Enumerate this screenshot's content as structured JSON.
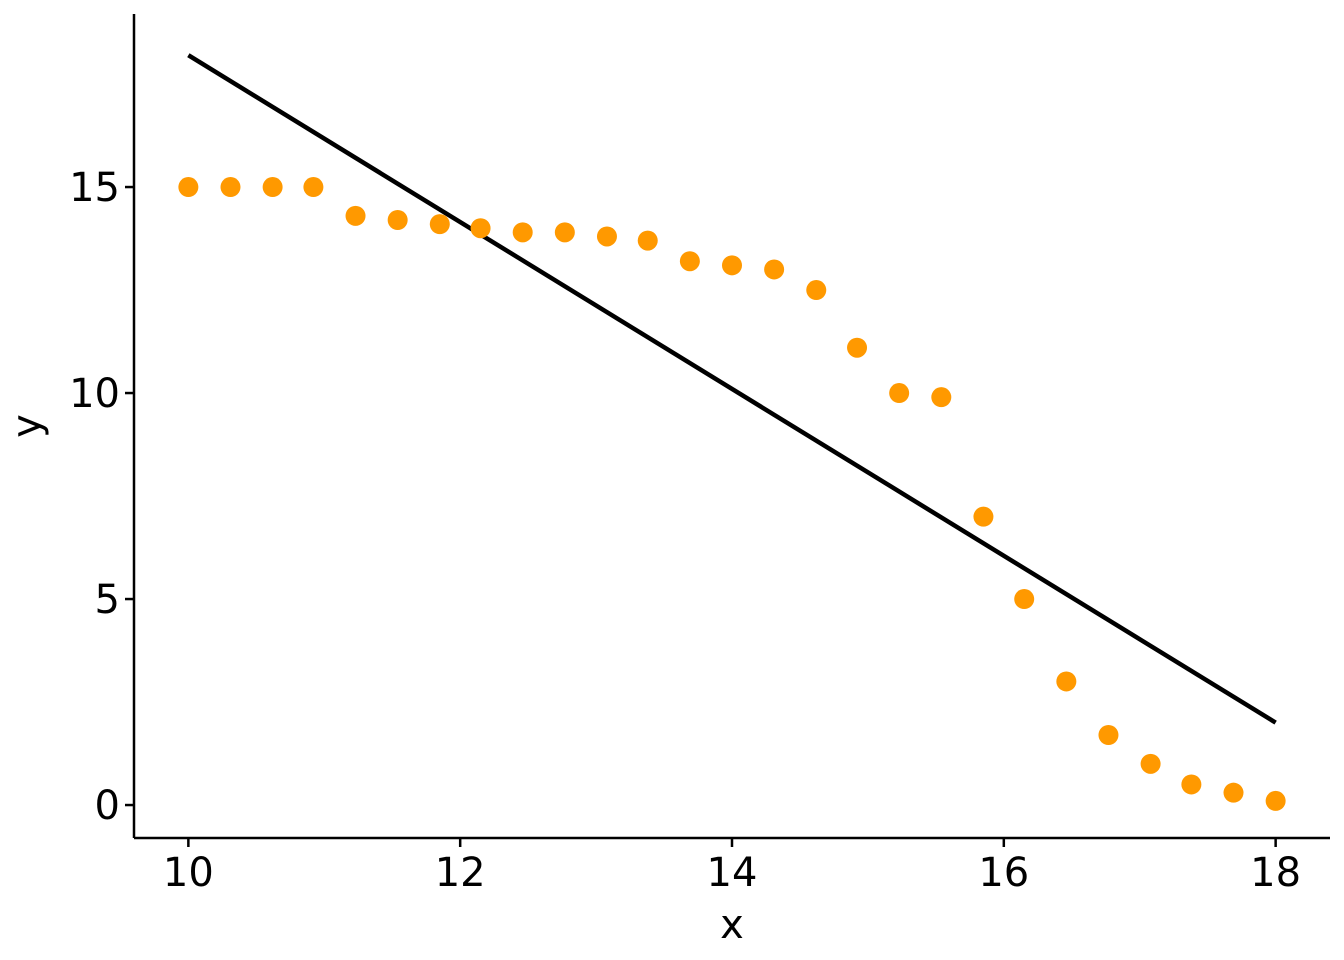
{
  "chart_data": {
    "type": "scatter",
    "xlabel": "x",
    "ylabel": "y",
    "xlim": [
      9.6,
      18.4
    ],
    "ylim": [
      -0.8,
      19.2
    ],
    "x_ticks": [
      10,
      12,
      14,
      16,
      18
    ],
    "x_tick_labels": [
      "10",
      "12",
      "14",
      "16",
      "18"
    ],
    "y_ticks": [
      0,
      5,
      10,
      15
    ],
    "y_tick_labels": [
      "0",
      "5",
      "10",
      "15"
    ],
    "grid": false,
    "series": [
      {
        "kind": "scatter",
        "color": "#ff9900",
        "x": [
          10,
          10.31,
          10.62,
          10.92,
          11.23,
          11.54,
          11.85,
          12.15,
          12.46,
          12.77,
          13.08,
          13.38,
          13.69,
          14.0,
          14.31,
          14.62,
          14.92,
          15.23,
          15.54,
          15.85,
          16.15,
          16.46,
          16.77,
          17.08,
          17.38,
          17.69,
          18.0
        ],
        "y": [
          15.0,
          15.0,
          15.0,
          15.0,
          14.3,
          14.2,
          14.1,
          14.0,
          13.9,
          13.9,
          13.8,
          13.7,
          13.2,
          13.1,
          13.0,
          12.5,
          11.1,
          10.0,
          9.9,
          7.0,
          5.0,
          3.0,
          1.7,
          1.0,
          0.5,
          0.3,
          0.1
        ]
      },
      {
        "kind": "line",
        "color": "#000000",
        "x": [
          10,
          18
        ],
        "y": [
          18.2,
          2.0
        ]
      }
    ]
  }
}
